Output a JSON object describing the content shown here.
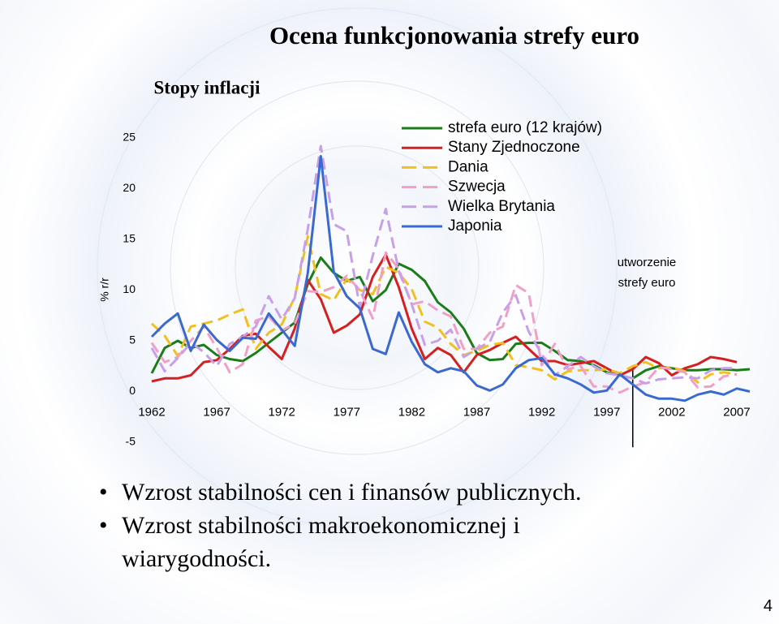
{
  "chart_data": {
    "type": "line",
    "title": "Ocena funkcjonowania strefy euro",
    "subtitle": "Stopy inflacji",
    "y_label": "% r/r",
    "annotation": [
      "utworzenie",
      "strefy euro"
    ],
    "marker_x": 1999,
    "x": [
      1962,
      1963,
      1964,
      1965,
      1966,
      1967,
      1968,
      1969,
      1970,
      1971,
      1972,
      1973,
      1974,
      1975,
      1976,
      1977,
      1978,
      1979,
      1980,
      1981,
      1982,
      1983,
      1984,
      1985,
      1986,
      1987,
      1988,
      1989,
      1990,
      1991,
      1992,
      1993,
      1994,
      1995,
      1996,
      1997,
      1998,
      1999,
      2000,
      2001,
      2002,
      2003,
      2004,
      2005,
      2006,
      2007,
      2008
    ],
    "xlim": [
      1961.5,
      2008.5
    ],
    "xticks": [
      1962,
      1967,
      1972,
      1977,
      1982,
      1987,
      1992,
      1997,
      2002,
      2007
    ],
    "ylim": [
      -5,
      25
    ],
    "yticks": [
      -5,
      0,
      5,
      10,
      15,
      20,
      25
    ],
    "series": [
      {
        "name": "strefa euro (12 krajów)",
        "color": "#1a7d1a",
        "dashed": false,
        "values": [
          1.8,
          4.3,
          5.0,
          4.3,
          4.6,
          3.6,
          3.2,
          3.0,
          3.8,
          4.8,
          5.8,
          6.8,
          10.6,
          13.2,
          11.7,
          10.9,
          11.3,
          8.9,
          10.0,
          12.6,
          12.0,
          10.9,
          8.8,
          7.8,
          6.2,
          3.8,
          3.1,
          3.2,
          4.7,
          4.8,
          4.8,
          4.0,
          3.1,
          3.0,
          2.6,
          1.9,
          1.6,
          1.3,
          2.1,
          2.5,
          2.3,
          2.1,
          2.1,
          2.2,
          2.2,
          2.1,
          2.2
        ]
      },
      {
        "name": "Stany Zjednoczone",
        "color": "#d42020",
        "dashed": false,
        "values": [
          1.0,
          1.3,
          1.3,
          1.6,
          2.9,
          3.1,
          4.2,
          5.5,
          5.7,
          4.4,
          3.2,
          6.2,
          11.0,
          9.1,
          5.8,
          6.5,
          7.6,
          11.3,
          13.5,
          10.3,
          6.2,
          3.2,
          4.3,
          3.6,
          1.9,
          3.6,
          4.1,
          4.8,
          5.4,
          4.2,
          3.0,
          3.0,
          2.6,
          2.8,
          3.0,
          2.3,
          1.6,
          2.2,
          3.4,
          2.8,
          1.6,
          2.3,
          2.7,
          3.4,
          3.2,
          2.9,
          null
        ]
      },
      {
        "name": "Dania",
        "color": "#f0c020",
        "dashed": true,
        "values": [
          6.7,
          5.5,
          3.5,
          6.4,
          6.7,
          7.0,
          7.6,
          8.1,
          4.2,
          5.8,
          6.6,
          9.3,
          15.3,
          9.6,
          9.0,
          11.1,
          10.0,
          9.6,
          12.3,
          11.7,
          10.1,
          6.9,
          6.3,
          4.7,
          3.6,
          4.0,
          4.6,
          4.8,
          2.6,
          2.4,
          2.1,
          1.2,
          2.0,
          2.1,
          2.1,
          2.2,
          1.8,
          2.5,
          2.9,
          2.3,
          2.4,
          2.0,
          0.9,
          1.7,
          1.9,
          1.7,
          null
        ]
      },
      {
        "name": "Szwecja",
        "color": "#f0a0c8",
        "dashed": true,
        "values": [
          4.8,
          2.9,
          3.4,
          5.0,
          6.4,
          4.3,
          1.9,
          2.7,
          7.0,
          7.4,
          6.0,
          6.7,
          9.9,
          9.8,
          10.3,
          11.4,
          10.0,
          7.2,
          13.7,
          12.1,
          8.6,
          8.9,
          8.0,
          7.4,
          4.2,
          4.2,
          5.8,
          6.4,
          10.5,
          9.7,
          2.6,
          4.7,
          2.2,
          2.5,
          0.5,
          0.5,
          -0.1,
          0.5,
          0.9,
          2.4,
          2.2,
          1.9,
          0.4,
          0.5,
          1.5,
          1.7,
          null
        ]
      },
      {
        "name": "Wielka Brytania",
        "color": "#c8a0e8",
        "dashed": true,
        "values": [
          4.3,
          2.0,
          3.3,
          4.8,
          3.9,
          2.5,
          4.7,
          5.4,
          6.4,
          9.4,
          7.1,
          9.2,
          16.0,
          24.2,
          16.5,
          15.8,
          8.3,
          13.4,
          18.0,
          11.9,
          8.6,
          4.6,
          5.0,
          6.1,
          3.4,
          4.2,
          4.9,
          7.8,
          9.5,
          5.9,
          3.7,
          1.6,
          2.5,
          3.4,
          2.5,
          1.8,
          1.6,
          1.3,
          0.8,
          1.2,
          1.3,
          1.4,
          1.3,
          2.1,
          2.3,
          2.3,
          null
        ]
      },
      {
        "name": "Japonia",
        "color": "#3a6ad0",
        "dashed": false,
        "values": [
          5.4,
          6.7,
          7.7,
          4.0,
          6.6,
          5.1,
          4.0,
          5.3,
          5.2,
          7.7,
          6.1,
          4.5,
          11.7,
          23.2,
          11.8,
          9.4,
          8.2,
          4.2,
          3.7,
          7.8,
          4.9,
          2.7,
          1.9,
          2.3,
          2.0,
          0.6,
          0.1,
          0.7,
          2.3,
          3.1,
          3.3,
          1.7,
          1.3,
          0.7,
          -0.1,
          0.1,
          1.7,
          0.7,
          -0.3,
          -0.7,
          -0.7,
          -0.9,
          -0.3,
          0.0,
          -0.3,
          0.3,
          0.0
        ]
      }
    ]
  },
  "bullets": [
    "Wzrost stabilności cen i  finansów publicznych.",
    "Wzrost stabilności makroekonomicznej i wiarygodności."
  ],
  "page_number": "4"
}
